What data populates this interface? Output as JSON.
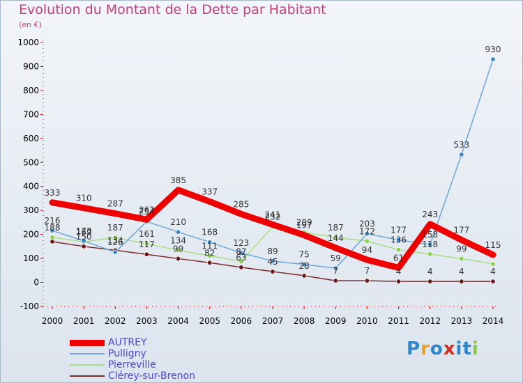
{
  "title": "Evolution du Montant de la Dette par Habitant",
  "subtitle": "(en €)",
  "logo": {
    "text": "Proxiti",
    "colors": [
      "#2e86c8",
      "#e8a020",
      "#2e86c8",
      "#d03020",
      "#2e86c8",
      "#2e86c8",
      "#8cc63f"
    ]
  },
  "chart_data": {
    "type": "line",
    "x": [
      "2000",
      "2001",
      "2002",
      "2003",
      "2004",
      "2005",
      "2006",
      "2007",
      "2008",
      "2009",
      "2010",
      "2011",
      "2012",
      "2013",
      "2014"
    ],
    "ylim": [
      -100,
      1000
    ],
    "yticks": [
      -100,
      0,
      100,
      200,
      300,
      400,
      500,
      600,
      700,
      800,
      900,
      1000
    ],
    "grid": false,
    "legend_position": "bottom-left",
    "series": [
      {
        "name": "AUTREY",
        "color": "#ee0000",
        "width": 9,
        "marker": false,
        "values": [
          333,
          310,
          287,
          262,
          385,
          337,
          285,
          241,
          197,
          144,
          94,
          61,
          243,
          177,
          115
        ],
        "labels": [
          "333",
          "310",
          "287",
          "262",
          "385",
          "337",
          "285",
          "241",
          "197",
          "144",
          "94",
          "61",
          "243",
          "177",
          "115"
        ]
      },
      {
        "name": "Pulligny",
        "color": "#6aa6d8",
        "width": 1.5,
        "marker": true,
        "marker_color": "#3a86c8",
        "values": [
          216,
          173,
          126,
          254,
          210,
          168,
          123,
          89,
          75,
          59,
          203,
          177,
          158,
          533,
          930
        ],
        "labels": [
          "216",
          "173",
          "126",
          "254",
          "210",
          "168",
          "123",
          "89",
          "75",
          "59",
          "203",
          "177",
          "158",
          "533",
          "930"
        ]
      },
      {
        "name": "Pierreville",
        "color": "#a8e080",
        "width": 1.5,
        "marker": true,
        "marker_color": "#88d050",
        "values": [
          188,
          169,
          187,
          161,
          134,
          111,
          87,
          232,
          209,
          187,
          172,
          136,
          118,
          99,
          77
        ],
        "labels": [
          "188",
          "169",
          "187",
          "161",
          "134",
          "111",
          "87",
          "232",
          "209",
          "187",
          "172",
          "136",
          "118",
          "99",
          ""
        ]
      },
      {
        "name": "Clérey-sur-Brenon",
        "color": "#7a2a2a",
        "width": 1.5,
        "marker": true,
        "marker_color": "#6a1a1a",
        "values": [
          170,
          150,
          134,
          117,
          99,
          82,
          63,
          45,
          28,
          7,
          7,
          4,
          4,
          4,
          4
        ],
        "labels": [
          "",
          "150",
          "134",
          "117",
          "99",
          "82",
          "63",
          "45",
          "28",
          "7",
          "7",
          "4",
          "4",
          "4",
          "4"
        ]
      }
    ]
  }
}
